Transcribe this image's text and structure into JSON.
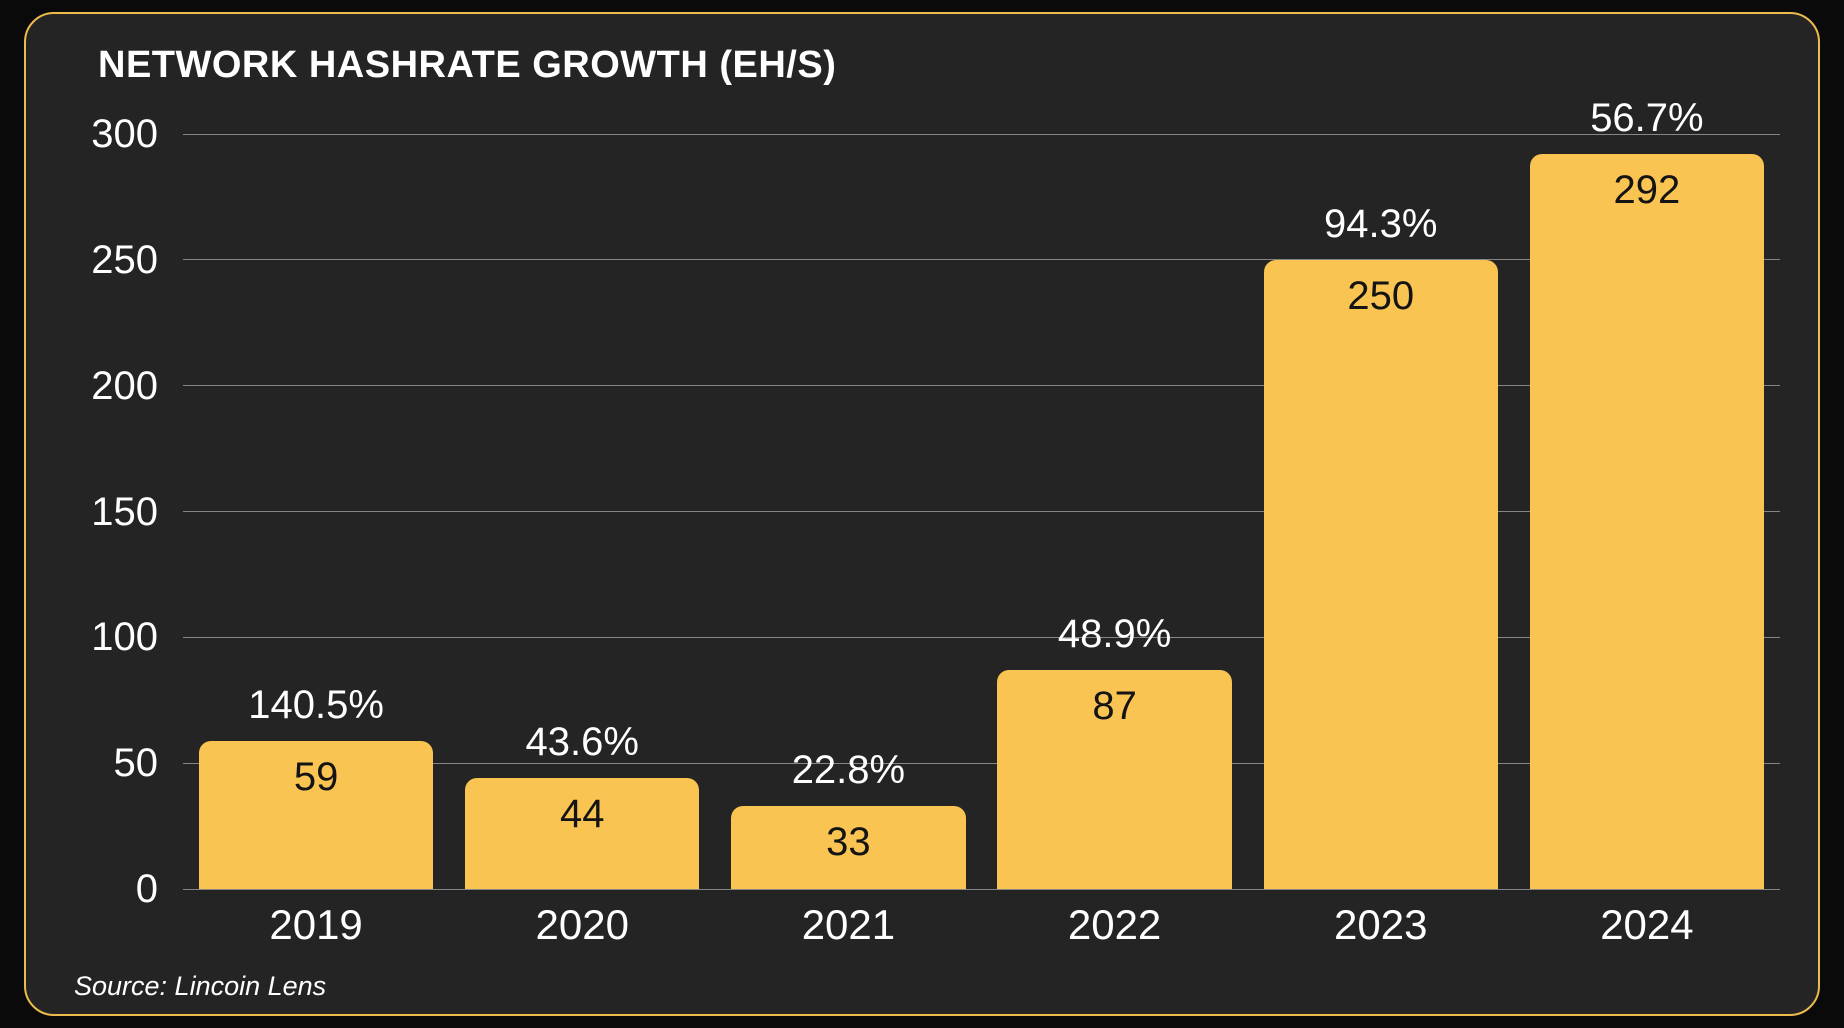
{
  "panel": {
    "title": "NETWORK HASHRATE GROWTH (EH/S)",
    "source": "Source: Lincoin Lens",
    "colors": {
      "bar": "#F9C452",
      "border": "#EDBB4D",
      "panel_background": "#242424",
      "outer_background": "#0A0A0A",
      "gridline": "rgba(255,255,255,0.45)",
      "text": "#FFFFFF",
      "bar_value_text": "#141414"
    }
  },
  "chart_data": {
    "type": "bar",
    "title": "NETWORK HASHRATE GROWTH (EH/S)",
    "categories": [
      "2019",
      "2020",
      "2021",
      "2022",
      "2023",
      "2024"
    ],
    "values": [
      59,
      44,
      33,
      87,
      250,
      292
    ],
    "growth_labels": [
      "140.5%",
      "43.6%",
      "22.8%",
      "48.9%",
      "94.3%",
      "56.7%"
    ],
    "xlabel": "",
    "ylabel": "",
    "ylim": [
      0,
      300
    ],
    "yticks": [
      0,
      50,
      100,
      150,
      200,
      250,
      300
    ],
    "grid": true,
    "legend": false,
    "source": "Source: Lincoin Lens"
  }
}
